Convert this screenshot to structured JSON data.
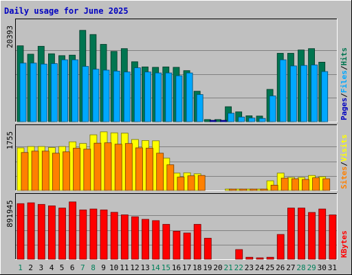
{
  "chart_data": {
    "type": "bar",
    "title": "Daily usage for June 2025",
    "categories": [
      "1",
      "2",
      "3",
      "4",
      "5",
      "6",
      "7",
      "8",
      "9",
      "10",
      "11",
      "12",
      "13",
      "14",
      "15",
      "16",
      "17",
      "18",
      "19",
      "20",
      "21",
      "22",
      "23",
      "24",
      "25",
      "26",
      "27",
      "28",
      "29",
      "30",
      "31"
    ],
    "weekend_days": [
      "1",
      "7",
      "8",
      "14",
      "15",
      "21",
      "22",
      "28",
      "29"
    ],
    "panels": [
      {
        "id": "hits-files-pages",
        "max_label": "20393",
        "ylim": [
          0,
          20393
        ],
        "grid": true,
        "series": [
          {
            "name": "Hits",
            "color": "#007550",
            "values": [
              16200,
              14400,
              16100,
              14500,
              14100,
              14200,
              19500,
              18600,
              16500,
              15000,
              15600,
              12800,
              11700,
              11600,
              11700,
              11600,
              10900,
              6500,
              460,
              460,
              3200,
              2100,
              1260,
              1210,
              6900,
              14600,
              14600,
              15300,
              15600,
              12700,
              0
            ]
          },
          {
            "name": "Files",
            "color": "#00a8ff",
            "values": [
              12500,
              12500,
              12300,
              12400,
              13200,
              13200,
              11800,
              11200,
              11000,
              10800,
              10600,
              11500,
              10600,
              10400,
              10400,
              9800,
              10400,
              5800,
              0,
              0,
              1800,
              1000,
              780,
              700,
              5500,
              13200,
              11900,
              12000,
              12100,
              10700,
              0
            ]
          },
          {
            "name": "Pages",
            "color": "#0000c0",
            "values": [
              0,
              0,
              0,
              0,
              0,
              0,
              0,
              0,
              0,
              0,
              0,
              0,
              0,
              0,
              0,
              0,
              0,
              0,
              300,
              300,
              0,
              0,
              0,
              0,
              0,
              0,
              0,
              0,
              0,
              0,
              0
            ]
          }
        ],
        "legend": [
          "Pages",
          "/",
          "Files",
          "/",
          "Hits"
        ]
      },
      {
        "id": "sites-visits",
        "max_label": "1755",
        "ylim": [
          0,
          1755
        ],
        "grid": true,
        "series": [
          {
            "name": "Visits",
            "color": "#ffff00",
            "values": [
              1280,
              1320,
              1320,
              1290,
              1320,
              1460,
              1410,
              1670,
              1760,
              1730,
              1720,
              1530,
              1500,
              1490,
              970,
              520,
              530,
              500,
              0,
              0,
              20,
              20,
              20,
              20,
              290,
              520,
              390,
              390,
              450,
              410,
              0
            ]
          },
          {
            "name": "Sites",
            "color": "#ff8000",
            "values": [
              1140,
              1180,
              1180,
              1120,
              1160,
              1270,
              1240,
              1420,
              1430,
              1390,
              1410,
              1280,
              1270,
              1120,
              770,
              400,
              440,
              450,
              0,
              0,
              20,
              20,
              20,
              20,
              160,
              370,
              350,
              330,
              380,
              350,
              0
            ]
          }
        ],
        "legend": [
          "Sites",
          "/",
          "Visits"
        ]
      },
      {
        "id": "kbytes",
        "max_label": "891945",
        "ylim": [
          0,
          891945
        ],
        "grid": true,
        "series": [
          {
            "name": "KBytes",
            "color": "#ff0000",
            "values": [
              848000,
              860000,
              836000,
              814000,
              781000,
              874000,
              752000,
              766000,
              752000,
              716000,
              677000,
              647000,
              609000,
              589000,
              532000,
              427000,
              400000,
              532000,
              320000,
              0,
              0,
              147000,
              29000,
              20000,
              29000,
              378000,
              781000,
              781000,
              714000,
              766000,
              676000
            ]
          }
        ],
        "legend": [
          "KBytes"
        ]
      }
    ]
  }
}
